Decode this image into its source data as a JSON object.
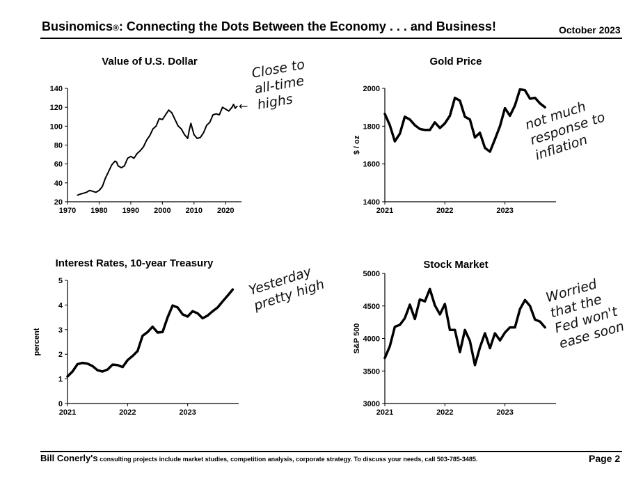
{
  "header": {
    "title": "Businomics",
    "registered_mark": "®",
    "title_rest": ": Connecting the Dots Between the Economy . . . and Business!",
    "date": "October 2023"
  },
  "footer": {
    "name": "Bill Conerly's",
    "text": " consulting projects include market studies, competition analysis, corporate strategy.  To discuss your needs, call 503-785-3485.",
    "page": "Page 2"
  },
  "annotations": {
    "dollar": [
      "Close to",
      "all-time",
      "highs"
    ],
    "gold": [
      "not much",
      "response to",
      "inflation"
    ],
    "rates": [
      "Yesterday",
      "pretty high"
    ],
    "stocks": [
      "Worried",
      "that the",
      "Fed won't",
      "ease soon"
    ]
  },
  "chart_data": [
    {
      "id": "dollar",
      "type": "line",
      "title": "Value of U.S. Dollar",
      "xlabel": "",
      "ylabel": "",
      "xlim": [
        1970,
        2025
      ],
      "ylim": [
        20,
        140
      ],
      "x_ticks": [
        1970,
        1980,
        1990,
        2000,
        2010,
        2020
      ],
      "y_ticks": [
        20,
        40,
        60,
        80,
        100,
        120,
        140
      ],
      "grid": false,
      "x": [
        1973.2,
        1974,
        1975,
        1976,
        1977,
        1978,
        1979,
        1980,
        1981,
        1982,
        1983,
        1984,
        1985,
        1985.5,
        1986,
        1986.5,
        1987,
        1988,
        1989,
        1990,
        1991,
        1992,
        1993,
        1994,
        1995,
        1996,
        1997,
        1998,
        1999,
        2000,
        2001,
        2002,
        2003,
        2004,
        2005,
        2006,
        2007,
        2008,
        2008.5,
        2009,
        2010,
        2011,
        2012,
        2013,
        2014,
        2015,
        2016,
        2017,
        2018,
        2019,
        2020,
        2021,
        2022,
        2022.5,
        2023,
        2023.6
      ],
      "y": [
        27,
        28,
        29,
        30,
        32,
        31,
        30,
        32,
        36,
        45,
        52,
        59,
        63,
        62,
        58,
        57,
        56,
        58,
        66,
        68,
        66,
        71,
        74,
        78,
        85,
        90,
        97,
        100,
        108,
        107,
        112,
        117,
        114,
        107,
        100,
        97,
        91,
        87,
        96,
        103,
        91,
        87,
        88,
        93,
        101,
        104,
        112,
        113,
        112,
        120,
        118,
        116,
        120,
        123,
        119,
        121
      ]
    },
    {
      "id": "gold",
      "type": "line",
      "title": "Gold Price",
      "xlabel": "",
      "ylabel": "$ / oz",
      "xlim": [
        2021,
        2023.85
      ],
      "ylim": [
        1400,
        2000
      ],
      "x_ticks": [
        2021,
        2022,
        2023
      ],
      "y_ticks": [
        1400,
        1600,
        1800,
        2000
      ],
      "grid": false,
      "x": [
        2021.0,
        2021.083,
        2021.167,
        2021.25,
        2021.333,
        2021.417,
        2021.5,
        2021.583,
        2021.667,
        2021.75,
        2021.833,
        2021.917,
        2022.0,
        2022.083,
        2022.167,
        2022.25,
        2022.333,
        2022.417,
        2022.5,
        2022.583,
        2022.667,
        2022.75,
        2022.833,
        2022.917,
        2023.0,
        2023.083,
        2023.167,
        2023.25,
        2023.333,
        2023.417,
        2023.5,
        2023.583,
        2023.667
      ],
      "y": [
        1865,
        1805,
        1720,
        1760,
        1850,
        1835,
        1805,
        1785,
        1780,
        1780,
        1820,
        1790,
        1815,
        1855,
        1950,
        1935,
        1850,
        1835,
        1740,
        1765,
        1685,
        1665,
        1730,
        1800,
        1895,
        1855,
        1910,
        1995,
        1990,
        1945,
        1950,
        1920,
        1900
      ]
    },
    {
      "id": "rates",
      "type": "line",
      "title": "Interest Rates, 10-year Treasury",
      "xlabel": "",
      "ylabel": "percent",
      "xlim": [
        2021,
        2023.85
      ],
      "ylim": [
        0,
        5
      ],
      "x_ticks": [
        2021,
        2022,
        2023
      ],
      "y_ticks": [
        0,
        1,
        2,
        3,
        4,
        5
      ],
      "grid": false,
      "x": [
        2021.0,
        2021.083,
        2021.167,
        2021.25,
        2021.333,
        2021.417,
        2021.5,
        2021.583,
        2021.667,
        2021.75,
        2021.833,
        2021.917,
        2022.0,
        2022.083,
        2022.167,
        2022.25,
        2022.333,
        2022.417,
        2022.5,
        2022.583,
        2022.667,
        2022.75,
        2022.833,
        2022.917,
        2023.0,
        2023.083,
        2023.167,
        2023.25,
        2023.333,
        2023.417,
        2023.5,
        2023.583,
        2023.667,
        2023.75
      ],
      "y": [
        1.1,
        1.3,
        1.6,
        1.65,
        1.62,
        1.52,
        1.35,
        1.3,
        1.38,
        1.58,
        1.56,
        1.48,
        1.76,
        1.93,
        2.13,
        2.75,
        2.9,
        3.12,
        2.88,
        2.9,
        3.5,
        3.98,
        3.9,
        3.62,
        3.53,
        3.75,
        3.66,
        3.46,
        3.57,
        3.75,
        3.9,
        4.15,
        4.38,
        4.63
      ]
    },
    {
      "id": "stocks",
      "type": "line",
      "title": "Stock Market",
      "xlabel": "",
      "ylabel": "S&P 500",
      "xlim": [
        2021,
        2023.85
      ],
      "ylim": [
        3000,
        5000
      ],
      "x_ticks": [
        2021,
        2022,
        2023
      ],
      "y_ticks": [
        3000,
        3500,
        4000,
        4500,
        5000
      ],
      "grid": false,
      "x": [
        2021.0,
        2021.083,
        2021.167,
        2021.25,
        2021.333,
        2021.417,
        2021.5,
        2021.583,
        2021.667,
        2021.75,
        2021.833,
        2021.917,
        2022.0,
        2022.083,
        2022.167,
        2022.25,
        2022.333,
        2022.417,
        2022.5,
        2022.583,
        2022.667,
        2022.75,
        2022.833,
        2022.917,
        2023.0,
        2023.083,
        2023.167,
        2023.25,
        2023.333,
        2023.417,
        2023.5,
        2023.583,
        2023.667
      ],
      "y": [
        3700,
        3880,
        4180,
        4210,
        4310,
        4520,
        4300,
        4600,
        4570,
        4760,
        4510,
        4370,
        4530,
        4130,
        4130,
        3790,
        4130,
        3960,
        3590,
        3860,
        4080,
        3850,
        4080,
        3970,
        4090,
        4170,
        4170,
        4450,
        4590,
        4500,
        4290,
        4260,
        4170
      ]
    }
  ]
}
